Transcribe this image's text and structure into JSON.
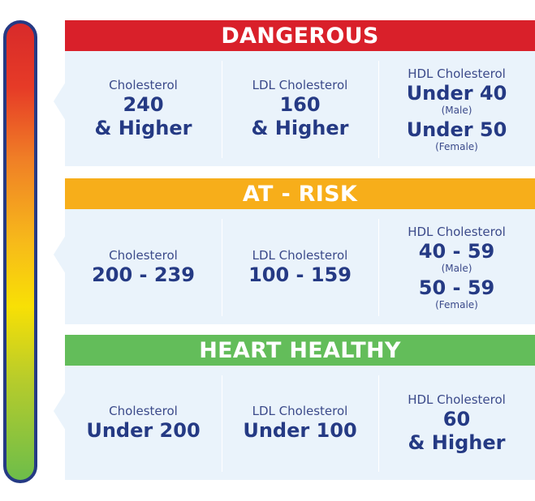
{
  "colors": {
    "dangerous": "#d9202a",
    "at_risk": "#f7ae1a",
    "healthy": "#63bd5a",
    "text": "#253a84",
    "panel": "#eaf3fb"
  },
  "sections": [
    {
      "title": "DANGEROUS",
      "cholesterol": {
        "label": "Cholesterol",
        "value1": "240",
        "value2": "& Higher"
      },
      "ldl": {
        "label": "LDL Cholesterol",
        "value1": "160",
        "value2": "& Higher"
      },
      "hdl": {
        "label": "HDL Cholesterol",
        "value1": "Under 40",
        "note1": "(Male)",
        "value2": "Under 50",
        "note2": "(Female)"
      }
    },
    {
      "title": "AT - RISK",
      "cholesterol": {
        "label": "Cholesterol",
        "value": "200 - 239"
      },
      "ldl": {
        "label": "LDL Cholesterol",
        "value": "100 - 159"
      },
      "hdl": {
        "label": "HDL Cholesterol",
        "value1": "40 - 59",
        "note1": "(Male)",
        "value2": "50 - 59",
        "note2": "(Female)"
      }
    },
    {
      "title": "HEART HEALTHY",
      "cholesterol": {
        "label": "Cholesterol",
        "value": "Under 200"
      },
      "ldl": {
        "label": "LDL Cholesterol",
        "value": "Under 100"
      },
      "hdl": {
        "label": "HDL Cholesterol",
        "value1": "60",
        "value2": "& Higher"
      }
    }
  ]
}
